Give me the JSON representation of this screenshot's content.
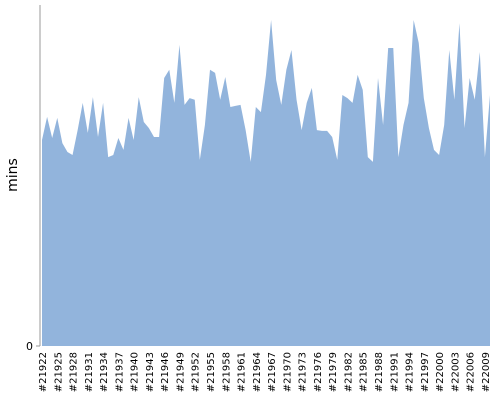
{
  "chart_data": {
    "type": "area",
    "y_label": "mins",
    "color": "#92b4dc",
    "categories": [
      "#21922",
      null,
      null,
      "#21925",
      null,
      null,
      "#21928",
      null,
      null,
      "#21931",
      null,
      null,
      "#21934",
      null,
      null,
      "#21937",
      null,
      null,
      "#21940",
      null,
      null,
      "#21943",
      null,
      null,
      "#21946",
      null,
      null,
      "#21949",
      null,
      null,
      "#21952",
      null,
      null,
      "#21955",
      null,
      null,
      "#21958",
      null,
      null,
      "#21961",
      null,
      null,
      "#21964",
      null,
      null,
      "#21967",
      null,
      null,
      "#21970",
      null,
      null,
      "#21973",
      null,
      null,
      "#21976",
      null,
      null,
      "#21979",
      null,
      null,
      "#21982",
      null,
      null,
      "#21985",
      null,
      null,
      "#21988",
      null,
      null,
      "#21991",
      null,
      null,
      "#21994",
      null,
      null,
      "#21997",
      null,
      null,
      "#22000",
      null,
      null,
      "#22003",
      null,
      null,
      "#22006",
      null,
      null,
      "#22009",
      null
    ],
    "values": [
      60.4,
      67.2,
      61.0,
      66.9,
      59.5,
      56.9,
      56.0,
      63.3,
      71.3,
      62.5,
      73.0,
      61.3,
      71.3,
      55.4,
      56.0,
      61.0,
      57.5,
      66.9,
      60.4,
      73.0,
      65.7,
      63.9,
      61.3,
      61.3,
      78.6,
      81.0,
      71.3,
      88.3,
      70.7,
      72.7,
      72.2,
      54.6,
      64.8,
      81.0,
      80.1,
      72.2,
      78.9,
      70.1,
      70.4,
      70.7,
      63.3,
      54.0,
      70.1,
      68.6,
      79.5,
      95.6,
      78.0,
      70.7,
      81.0,
      86.8,
      72.2,
      63.3,
      71.3,
      75.7,
      63.3,
      63.1,
      63.1,
      61.3,
      54.6,
      73.6,
      72.7,
      71.3,
      79.5,
      75.1,
      55.4,
      54.0,
      78.6,
      64.8,
      87.4,
      87.4,
      55.4,
      64.8,
      71.3,
      95.6,
      88.9,
      72.7,
      63.9,
      57.5,
      56.0,
      64.8,
      86.8,
      72.2,
      94.7,
      63.9,
      78.6,
      72.2,
      86.2,
      55.4,
      73.6
    ],
    "ylim": [
      0,
      100
    ],
    "yticks": [
      0
    ]
  }
}
